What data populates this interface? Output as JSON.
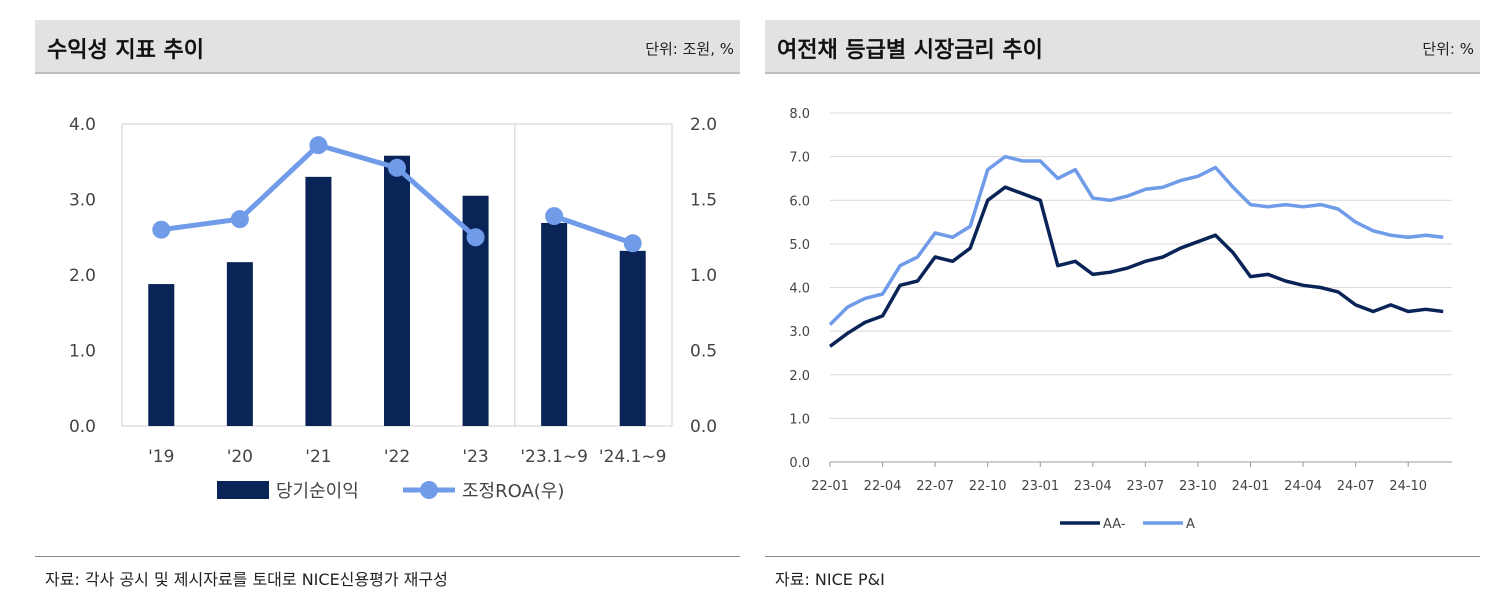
{
  "left": {
    "title": "수익성 지표 추이",
    "unit": "단위: 조원, %",
    "source": "자료: 각사 공시 및 제시자료를 토대로 NICE신용평가 재구성",
    "chart_data": {
      "type": "bar",
      "categories": [
        "'19",
        "'20",
        "'21",
        "'22",
        "'23",
        "'23.1~9",
        "'24.1~9"
      ],
      "series": [
        {
          "name": "당기순이익",
          "type": "bar",
          "axis": "left",
          "color": "#0a2457",
          "values": [
            1.88,
            2.17,
            3.3,
            3.58,
            3.05,
            2.69,
            2.32
          ]
        },
        {
          "name": "조정ROA(우)",
          "type": "line",
          "axis": "right",
          "color": "#6f9be8",
          "values": [
            1.3,
            1.37,
            1.86,
            1.71,
            1.25,
            1.39,
            1.21
          ]
        }
      ],
      "y_left": {
        "min": 0,
        "max": 4,
        "ticks": [
          "0.0",
          "1.0",
          "2.0",
          "3.0",
          "4.0"
        ]
      },
      "y_right": {
        "min": 0,
        "max": 2,
        "ticks": [
          "0.0",
          "0.5",
          "1.0",
          "1.5",
          "2.0"
        ]
      },
      "legend": "bottom"
    }
  },
  "right": {
    "title": "여전채 등급별 시장금리 추이",
    "unit": "단위: %",
    "source": "자료: NICE P&I",
    "chart_data": {
      "type": "line",
      "x_ticks": [
        "22-01",
        "22-04",
        "22-07",
        "22-10",
        "23-01",
        "23-04",
        "23-07",
        "23-10",
        "24-01",
        "24-04",
        "24-07",
        "24-10"
      ],
      "y": {
        "min": 0,
        "max": 8,
        "ticks": [
          "0.0",
          "1.0",
          "2.0",
          "3.0",
          "4.0",
          "5.0",
          "6.0",
          "7.0",
          "8.0"
        ]
      },
      "legend": "bottom",
      "series": [
        {
          "name": "AA-",
          "color": "#0a2457",
          "points": [
            [
              "2022-01",
              2.65
            ],
            [
              "2022-02",
              2.95
            ],
            [
              "2022-03",
              3.2
            ],
            [
              "2022-04",
              3.35
            ],
            [
              "2022-05",
              4.05
            ],
            [
              "2022-06",
              4.15
            ],
            [
              "2022-07",
              4.7
            ],
            [
              "2022-08",
              4.6
            ],
            [
              "2022-09",
              4.9
            ],
            [
              "2022-10",
              6.0
            ],
            [
              "2022-11",
              6.3
            ],
            [
              "2022-12",
              6.15
            ],
            [
              "2023-01",
              6.0
            ],
            [
              "2023-02",
              4.5
            ],
            [
              "2023-03",
              4.6
            ],
            [
              "2023-04",
              4.3
            ],
            [
              "2023-05",
              4.35
            ],
            [
              "2023-06",
              4.45
            ],
            [
              "2023-07",
              4.6
            ],
            [
              "2023-08",
              4.7
            ],
            [
              "2023-09",
              4.9
            ],
            [
              "2023-10",
              5.05
            ],
            [
              "2023-11",
              5.2
            ],
            [
              "2023-12",
              4.8
            ],
            [
              "2024-01",
              4.25
            ],
            [
              "2024-02",
              4.3
            ],
            [
              "2024-03",
              4.15
            ],
            [
              "2024-04",
              4.05
            ],
            [
              "2024-05",
              4.0
            ],
            [
              "2024-06",
              3.9
            ],
            [
              "2024-07",
              3.6
            ],
            [
              "2024-08",
              3.45
            ],
            [
              "2024-09",
              3.6
            ],
            [
              "2024-10",
              3.45
            ],
            [
              "2024-11",
              3.5
            ],
            [
              "2024-12",
              3.45
            ]
          ]
        },
        {
          "name": "A",
          "color": "#6f9be8",
          "points": [
            [
              "2022-01",
              3.15
            ],
            [
              "2022-02",
              3.55
            ],
            [
              "2022-03",
              3.75
            ],
            [
              "2022-04",
              3.85
            ],
            [
              "2022-05",
              4.5
            ],
            [
              "2022-06",
              4.7
            ],
            [
              "2022-07",
              5.25
            ],
            [
              "2022-08",
              5.15
            ],
            [
              "2022-09",
              5.4
            ],
            [
              "2022-10",
              6.7
            ],
            [
              "2022-11",
              7.0
            ],
            [
              "2022-12",
              6.9
            ],
            [
              "2023-01",
              6.9
            ],
            [
              "2023-02",
              6.5
            ],
            [
              "2023-03",
              6.7
            ],
            [
              "2023-04",
              6.05
            ],
            [
              "2023-05",
              6.0
            ],
            [
              "2023-06",
              6.1
            ],
            [
              "2023-07",
              6.25
            ],
            [
              "2023-08",
              6.3
            ],
            [
              "2023-09",
              6.45
            ],
            [
              "2023-10",
              6.55
            ],
            [
              "2023-11",
              6.75
            ],
            [
              "2023-12",
              6.3
            ],
            [
              "2024-01",
              5.9
            ],
            [
              "2024-02",
              5.85
            ],
            [
              "2024-03",
              5.9
            ],
            [
              "2024-04",
              5.85
            ],
            [
              "2024-05",
              5.9
            ],
            [
              "2024-06",
              5.8
            ],
            [
              "2024-07",
              5.5
            ],
            [
              "2024-08",
              5.3
            ],
            [
              "2024-09",
              5.2
            ],
            [
              "2024-10",
              5.15
            ],
            [
              "2024-11",
              5.2
            ],
            [
              "2024-12",
              5.15
            ]
          ]
        }
      ]
    }
  }
}
